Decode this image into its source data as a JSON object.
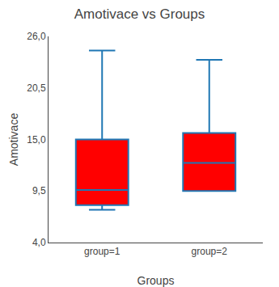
{
  "chart_data": {
    "type": "box",
    "title": "Amotivace vs Groups",
    "xlabel": "Groups",
    "ylabel": "Amotivace",
    "categories": [
      "group=1",
      "group=2"
    ],
    "boxes": [
      {
        "whislo": 7.5,
        "q1": 8.0,
        "med": 9.6,
        "q3": 15.0,
        "whishi": 24.5
      },
      {
        "whislo": 9.5,
        "q1": 9.5,
        "med": 12.5,
        "q3": 15.7,
        "whishi": 23.5
      }
    ],
    "color": "#FF0000",
    "ylim": [
      4.0,
      26.0
    ],
    "yticks": [
      {
        "value": 4.0,
        "label": "4,0"
      },
      {
        "value": 9.5,
        "label": "9,5"
      },
      {
        "value": 15.0,
        "label": "15,0"
      },
      {
        "value": 20.5,
        "label": "20,5"
      },
      {
        "value": 26.0,
        "label": "26,0"
      }
    ],
    "grid": false
  }
}
